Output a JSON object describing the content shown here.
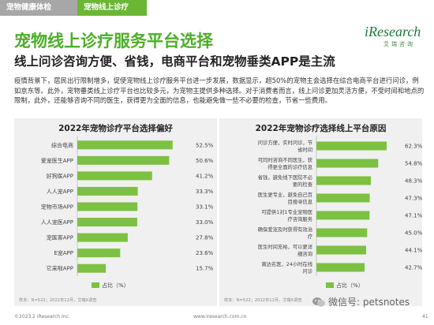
{
  "header": {
    "tab1": "宠物健康体检",
    "tab2": "宠物线上诊疗"
  },
  "logo": {
    "name": "iResearch",
    "sub": "艾瑞咨询"
  },
  "title": "宠物线上诊疗服务平台选择",
  "subtitle": "线上问诊咨询方便、省钱，电商平台和宠物垂类APP是主流",
  "paragraph": "疫情背景下，居民出行限制增多，促使宠物线上诊疗服务平台进一步发展，数据显示，超50%的宠物主会选择在综合电商平台进行问诊，例如京东等。此外，宠物垂类线上诊疗平台也比较多元，为宠物主提供多种选择。对于消费者而言，线上问诊更加灵活方便，不受时间和地点的限制，此外，还能够咨询不同的医生，获得更为全面的信息，也能避免做一些不必要的检查，节省一些费用。",
  "chart_data": [
    {
      "type": "bar",
      "orientation": "horizontal",
      "title": "2022年宠物诊疗平台选择偏好",
      "categories": [
        "综合电商",
        "爱宠医生APP",
        "好狗医APP",
        "人人宠APP",
        "宠物市场APP",
        "人人宠医APP",
        "宠医客APP",
        "E宠APP",
        "它来啦APP"
      ],
      "values": [
        52.5,
        50.6,
        41.2,
        33.3,
        33.1,
        33.0,
        27.8,
        23.6,
        15.7
      ],
      "value_labels": [
        "52.5%",
        "50.6%",
        "41.2%",
        "33.3%",
        "33.1%",
        "33.0%",
        "27.8%",
        "23.6%",
        "15.7%"
      ],
      "xlim": [
        0,
        60
      ],
      "legend": "占比（%）",
      "legend_position": "bottom",
      "color": "#7cc142"
    },
    {
      "type": "bar",
      "orientation": "horizontal",
      "title": "2022年宠物诊疗选择线上平台原因",
      "categories": [
        "问诊方便，实时问诊，节省时间",
        "可同时咨询不同医生，获得更全面的诊疗信息",
        "省钱，避免线下医院不必要的检查",
        "医生更专业，避免自己百目搜寻信息",
        "可提供1对1专业宠物医疗咨询服务",
        "确保爱宠及时获得有效治疗",
        "医生时间充裕，可以更详细咨询",
        "离达名医，24小时在线问诊"
      ],
      "values": [
        62.3,
        54.8,
        48.3,
        47.3,
        47.1,
        45.0,
        44.1,
        42.7
      ],
      "value_labels": [
        "62.3%",
        "54.8%",
        "48.3%",
        "47.3%",
        "47.1%",
        "45.0%",
        "44.1%",
        "42.7%"
      ],
      "xlim": [
        0,
        70
      ],
      "legend": "占比（%）",
      "legend_position": "bottom",
      "color": "#7cc142"
    }
  ],
  "notes": {
    "left": "样本：N=522；2022年12月，艾瑞X调查",
    "right": "样本：N=522；2022年12月，艾瑞X调查"
  },
  "footer": {
    "copyright": "©2023.2 iResearch Inc.",
    "url": "www.iresearch.com.cn",
    "page": "41"
  },
  "watermark": "微信号: petsnotes"
}
